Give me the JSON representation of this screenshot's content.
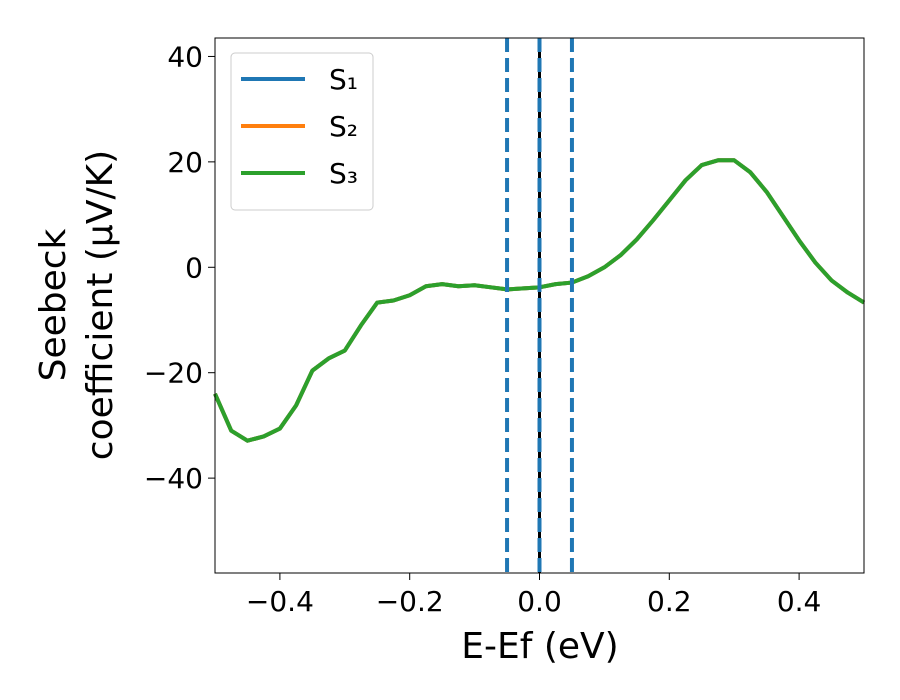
{
  "chart_data": {
    "type": "line",
    "xlabel": "E-Ef (eV)",
    "ylabel": [
      "Seebeck",
      "coefficient  (μV/K)"
    ],
    "x": [
      -0.5,
      -0.475,
      -0.45,
      -0.425,
      -0.4,
      -0.375,
      -0.35,
      -0.325,
      -0.3,
      -0.275,
      -0.25,
      -0.225,
      -0.2,
      -0.175,
      -0.15,
      -0.125,
      -0.1,
      -0.075,
      -0.05,
      -0.025,
      0,
      0.025,
      0.05,
      0.075,
      0.1,
      0.125,
      0.15,
      0.175,
      0.2,
      0.225,
      0.25,
      0.275,
      0.3,
      0.325,
      0.35,
      0.375,
      0.4,
      0.425,
      0.45,
      0.475,
      0.5
    ],
    "series": [
      {
        "name": "S₁",
        "color": "#1f77b4",
        "values": [
          -24,
          -31,
          -32.9,
          -32.1,
          -30.6,
          -26.2,
          -19.6,
          -17.3,
          -15.8,
          -11,
          -6.7,
          -6.3,
          -5.3,
          -3.6,
          -3.2,
          -3.6,
          -3.4,
          -3.8,
          -4.2,
          -4,
          -3.8,
          -3.2,
          -2.9,
          -1.7,
          0,
          2.3,
          5.3,
          8.9,
          12.7,
          16.5,
          19.4,
          20.3,
          20.3,
          18,
          14.3,
          9.7,
          5.1,
          0.9,
          -2.5,
          -4.8,
          -6.7
        ]
      },
      {
        "name": "S₂",
        "color": "#ff7f0e",
        "values": [
          -24,
          -31,
          -32.9,
          -32.1,
          -30.6,
          -26.2,
          -19.6,
          -17.3,
          -15.8,
          -11,
          -6.7,
          -6.3,
          -5.3,
          -3.6,
          -3.2,
          -3.6,
          -3.4,
          -3.8,
          -4.2,
          -4,
          -3.8,
          -3.2,
          -2.9,
          -1.7,
          0,
          2.3,
          5.3,
          8.9,
          12.7,
          16.5,
          19.4,
          20.3,
          20.3,
          18,
          14.3,
          9.7,
          5.1,
          0.9,
          -2.5,
          -4.8,
          -6.7
        ]
      },
      {
        "name": "S₃",
        "color": "#2ca02c",
        "values": [
          -24,
          -31,
          -32.9,
          -32.1,
          -30.6,
          -26.2,
          -19.6,
          -17.3,
          -15.8,
          -11,
          -6.7,
          -6.3,
          -5.3,
          -3.6,
          -3.2,
          -3.6,
          -3.4,
          -3.8,
          -4.2,
          -4,
          -3.8,
          -3.2,
          -2.9,
          -1.7,
          0,
          2.3,
          5.3,
          8.9,
          12.7,
          16.5,
          19.4,
          20.3,
          20.3,
          18,
          14.3,
          9.7,
          5.1,
          0.9,
          -2.5,
          -4.8,
          -6.7
        ]
      }
    ],
    "vlines": [
      {
        "x": 0,
        "color": "#000000",
        "dashed": false
      },
      {
        "x": -0.05,
        "color": "#1f77b4",
        "dashed": true
      },
      {
        "x": 0,
        "color": "#1f77b4",
        "dashed": true
      },
      {
        "x": 0.05,
        "color": "#1f77b4",
        "dashed": true
      }
    ],
    "xlim": [
      -0.5,
      0.5
    ],
    "xticks": [
      {
        "value": -0.4,
        "label": "−0.4"
      },
      {
        "value": -0.2,
        "label": "−0.2"
      },
      {
        "value": 0,
        "label": "0.0"
      },
      0.2,
      0.4
    ],
    "ylim": [
      -58,
      43.5
    ],
    "yticks": [
      {
        "value": -40,
        "label": "−40"
      },
      {
        "value": -20,
        "label": "−20"
      },
      0,
      20,
      40
    ],
    "legend": "upper left",
    "grid": false
  }
}
